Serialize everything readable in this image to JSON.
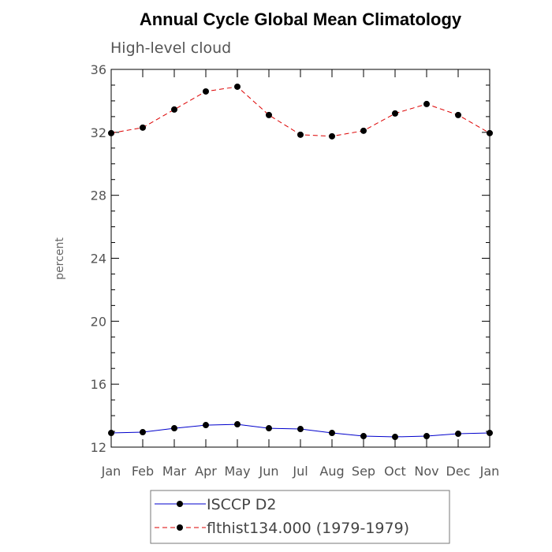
{
  "chart_data": {
    "type": "line",
    "title": "Annual Cycle Global Mean Climatology",
    "subtitle": "High-level cloud",
    "xlabel": "",
    "ylabel": "percent",
    "categories": [
      "Jan",
      "Feb",
      "Mar",
      "Apr",
      "May",
      "Jun",
      "Jul",
      "Aug",
      "Sep",
      "Oct",
      "Nov",
      "Dec",
      "Jan"
    ],
    "ylim": [
      12,
      36
    ],
    "yticks": [
      12,
      16,
      20,
      24,
      28,
      32,
      36
    ],
    "ytick_labels": [
      "12",
      "16",
      "20",
      "24",
      "28",
      "32",
      "36"
    ],
    "series": [
      {
        "name": "ISCCP D2",
        "color": "#0000cc",
        "line_style": "solid",
        "values": [
          12.9,
          12.95,
          13.2,
          13.4,
          13.45,
          13.2,
          13.15,
          12.9,
          12.7,
          12.65,
          12.7,
          12.85,
          12.9
        ]
      },
      {
        "name": "flthist134.000 (1979-1979)",
        "color": "#dd0000",
        "line_style": "dashed",
        "values": [
          31.95,
          32.3,
          33.45,
          34.6,
          34.9,
          33.1,
          31.85,
          31.75,
          32.1,
          33.2,
          33.8,
          33.1,
          31.95
        ]
      }
    ],
    "legend": {
      "position": "bottom-center"
    },
    "grid": false
  }
}
